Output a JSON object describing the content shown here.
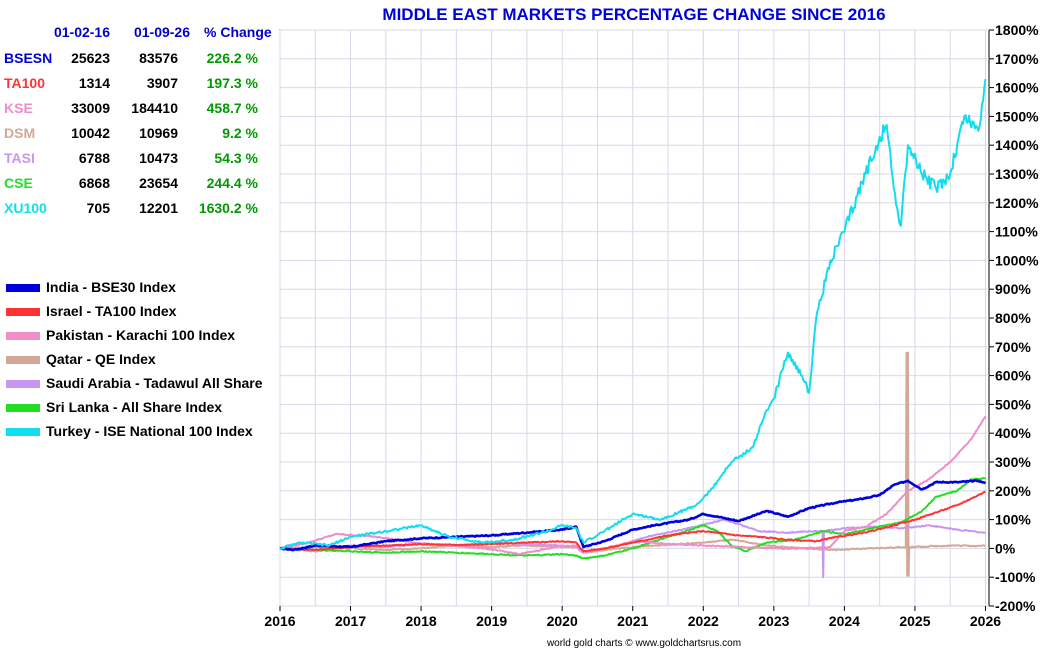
{
  "chart_data": {
    "type": "line",
    "title": "MIDDLE EAST MARKETS PERCENTAGE CHANGE SINCE 2016",
    "credit": "world gold charts © www.goldchartsrus.com",
    "xlabel": "",
    "ylabel": "",
    "xlim": [
      2016,
      2026.05
    ],
    "ylim": [
      -200,
      1800
    ],
    "x_ticks": [
      "2016",
      "2017",
      "2018",
      "2019",
      "2020",
      "2021",
      "2022",
      "2023",
      "2024",
      "2025",
      "2026"
    ],
    "y_ticks": [
      "1800%",
      "1700%",
      "1600%",
      "1500%",
      "1400%",
      "1300%",
      "1200%",
      "1100%",
      "1000%",
      "900%",
      "800%",
      "700%",
      "600%",
      "500%",
      "400%",
      "300%",
      "200%",
      "100%",
      "0%",
      "-100%",
      "-200%"
    ],
    "y_tick_values": [
      1800,
      1700,
      1600,
      1500,
      1400,
      1300,
      1200,
      1100,
      1000,
      900,
      800,
      700,
      600,
      500,
      400,
      300,
      200,
      100,
      0,
      -100,
      -200
    ],
    "grid": true,
    "table": {
      "headers": [
        "01-02-16",
        "01-09-26",
        "% Change"
      ],
      "rows": [
        {
          "code": "BSESN",
          "start": "25623",
          "end": "83576",
          "change": "226.2 %",
          "color": "#0000dd"
        },
        {
          "code": "TA100",
          "start": "1314",
          "end": "3907",
          "change": "197.3 %",
          "color": "#ff3333"
        },
        {
          "code": "KSE",
          "start": "33009",
          "end": "184410",
          "change": "458.7 %",
          "color": "#f08cc8"
        },
        {
          "code": "DSM",
          "start": "10042",
          "end": "10969",
          "change": "9.2 %",
          "color": "#d4a898"
        },
        {
          "code": "TASI",
          "start": "6788",
          "end": "10473",
          "change": "54.3 %",
          "color": "#c896f0"
        },
        {
          "code": "CSE",
          "start": "6868",
          "end": "23654",
          "change": "244.4 %",
          "color": "#22dd22"
        },
        {
          "code": "XU100",
          "start": "705",
          "end": "12201",
          "change": "1630.2 %",
          "color": "#11ddee"
        }
      ]
    },
    "series": [
      {
        "name": "India - BSE30 Index",
        "color": "#0000dd",
        "x": [
          2016.0,
          2016.2,
          2016.5,
          2017.0,
          2017.5,
          2018.0,
          2018.5,
          2019.0,
          2019.5,
          2020.0,
          2020.2,
          2020.3,
          2020.6,
          2021.0,
          2021.3,
          2021.8,
          2022.0,
          2022.5,
          2022.9,
          2023.2,
          2023.5,
          2023.9,
          2024.2,
          2024.5,
          2024.7,
          2024.9,
          2025.1,
          2025.3,
          2025.6,
          2025.9,
          2026.0
        ],
        "y": [
          0,
          -5,
          10,
          5,
          25,
          35,
          40,
          45,
          55,
          65,
          75,
          5,
          25,
          65,
          80,
          100,
          120,
          95,
          130,
          110,
          140,
          160,
          170,
          185,
          220,
          235,
          205,
          230,
          230,
          235,
          226
        ]
      },
      {
        "name": "Israel - TA100 Index",
        "color": "#ff3333",
        "x": [
          2016.0,
          2016.5,
          2017.0,
          2017.5,
          2018.0,
          2018.5,
          2019.0,
          2019.5,
          2020.0,
          2020.2,
          2020.3,
          2020.6,
          2021.0,
          2021.5,
          2022.0,
          2022.5,
          2022.8,
          2023.2,
          2023.6,
          2023.9,
          2024.3,
          2024.7,
          2025.0,
          2025.3,
          2025.6,
          2025.9,
          2026.0
        ],
        "y": [
          0,
          -5,
          5,
          10,
          15,
          12,
          15,
          20,
          25,
          20,
          -10,
          0,
          20,
          45,
          60,
          45,
          40,
          30,
          25,
          40,
          55,
          80,
          100,
          125,
          150,
          185,
          197
        ]
      },
      {
        "name": "Pakistan - Karachi 100 Index",
        "color": "#f08cc8",
        "x": [
          2016.0,
          2016.4,
          2016.8,
          2017.4,
          2017.9,
          2018.4,
          2018.9,
          2019.4,
          2019.9,
          2020.2,
          2020.3,
          2020.7,
          2021.0,
          2021.5,
          2022.0,
          2022.5,
          2023.0,
          2023.4,
          2023.8,
          2024.0,
          2024.3,
          2024.6,
          2024.9,
          2025.2,
          2025.5,
          2025.8,
          2026.0
        ],
        "y": [
          0,
          20,
          50,
          40,
          20,
          10,
          0,
          -20,
          5,
          10,
          -15,
          5,
          25,
          15,
          10,
          5,
          0,
          0,
          5,
          60,
          75,
          120,
          200,
          240,
          300,
          380,
          459
        ]
      },
      {
        "name": "Qatar - QE Index",
        "color": "#d4a898",
        "x": [
          2016.0,
          2016.5,
          2017.0,
          2017.5,
          2018.0,
          2018.5,
          2019.0,
          2019.5,
          2020.0,
          2020.2,
          2020.3,
          2020.8,
          2021.3,
          2022.0,
          2022.4,
          2022.9,
          2023.4,
          2023.9,
          2024.4,
          2024.87,
          2024.88,
          2024.89,
          2024.9,
          2024.91,
          2024.92,
          2025.0,
          2025.5,
          2026.0
        ],
        "y": [
          0,
          5,
          0,
          -5,
          0,
          10,
          5,
          10,
          5,
          5,
          -15,
          0,
          10,
          20,
          30,
          10,
          0,
          -5,
          0,
          5,
          680,
          -95,
          680,
          -95,
          5,
          5,
          10,
          9
        ]
      },
      {
        "name": "Saudi Arabia - Tadawul All Share",
        "color": "#c896f0",
        "x": [
          2016.0,
          2016.5,
          2017.0,
          2017.5,
          2018.0,
          2018.5,
          2019.0,
          2019.5,
          2020.0,
          2020.2,
          2020.3,
          2020.8,
          2021.2,
          2021.8,
          2022.3,
          2022.8,
          2023.2,
          2023.6,
          2023.69,
          2023.7,
          2023.71,
          2023.72,
          2024.0,
          2024.4,
          2024.8,
          2025.2,
          2025.6,
          2026.0
        ],
        "y": [
          0,
          -10,
          10,
          5,
          15,
          10,
          20,
          15,
          10,
          5,
          -15,
          10,
          40,
          70,
          100,
          60,
          55,
          60,
          60,
          -100,
          60,
          60,
          70,
          75,
          70,
          80,
          65,
          54
        ]
      },
      {
        "name": "Sri Lanka - All Share Index",
        "color": "#22dd22",
        "x": [
          2016.0,
          2016.5,
          2017.0,
          2017.5,
          2018.0,
          2018.5,
          2019.0,
          2019.5,
          2020.0,
          2020.2,
          2020.3,
          2020.6,
          2021.0,
          2021.5,
          2022.0,
          2022.2,
          2022.4,
          2022.6,
          2022.9,
          2023.3,
          2023.7,
          2024.0,
          2024.4,
          2024.8,
          2025.1,
          2025.3,
          2025.6,
          2025.8,
          2026.0
        ],
        "y": [
          0,
          -5,
          -10,
          -15,
          -10,
          -15,
          -20,
          -25,
          -20,
          -25,
          -35,
          -25,
          0,
          40,
          80,
          60,
          10,
          -10,
          20,
          30,
          60,
          50,
          70,
          90,
          130,
          180,
          200,
          240,
          244
        ]
      },
      {
        "name": "Turkey - ISE National 100 Index",
        "color": "#11ddee",
        "x": [
          2016.0,
          2016.3,
          2016.7,
          2017.0,
          2017.5,
          2018.0,
          2018.4,
          2018.9,
          2019.3,
          2019.8,
          2020.0,
          2020.2,
          2020.3,
          2020.6,
          2021.0,
          2021.4,
          2021.9,
          2022.1,
          2022.4,
          2022.7,
          2022.9,
          2023.0,
          2023.2,
          2023.4,
          2023.5,
          2023.6,
          2023.8,
          2024.0,
          2024.3,
          2024.5,
          2024.6,
          2024.7,
          2024.8,
          2024.9,
          2025.1,
          2025.3,
          2025.5,
          2025.7,
          2025.9,
          2026.0
        ],
        "y": [
          0,
          20,
          10,
          40,
          60,
          80,
          40,
          20,
          30,
          60,
          80,
          70,
          20,
          60,
          120,
          100,
          150,
          200,
          300,
          350,
          480,
          520,
          680,
          600,
          540,
          800,
          1000,
          1100,
          1300,
          1430,
          1470,
          1250,
          1120,
          1400,
          1300,
          1250,
          1300,
          1500,
          1450,
          1630
        ]
      }
    ]
  }
}
